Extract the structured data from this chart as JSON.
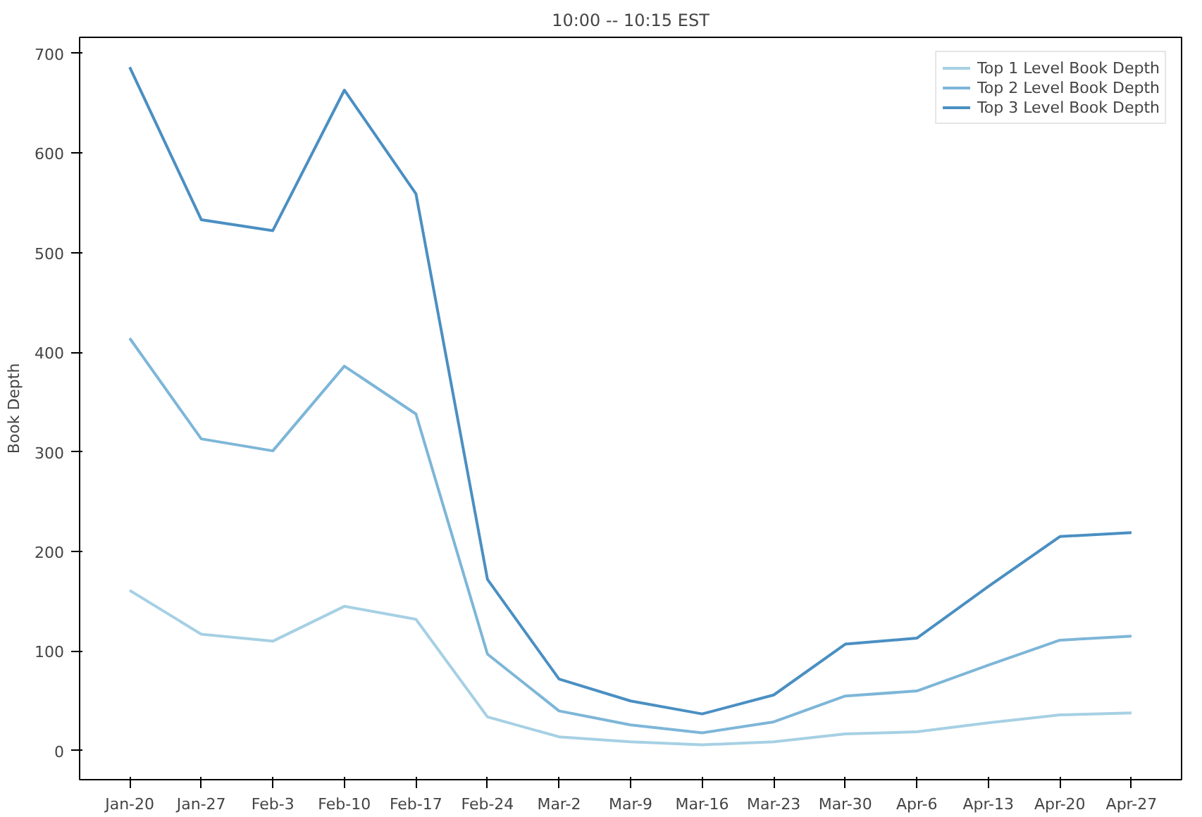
{
  "chart_data": {
    "type": "line",
    "title": "10:00 -- 10:15 EST",
    "ylabel": "Book Depth",
    "categories": [
      "Jan-20",
      "Jan-27",
      "Feb-3",
      "Feb-10",
      "Feb-17",
      "Feb-24",
      "Mar-2",
      "Mar-9",
      "Mar-16",
      "Mar-23",
      "Mar-30",
      "Apr-6",
      "Apr-13",
      "Apr-20",
      "Apr-27"
    ],
    "series": [
      {
        "name": "Top 1 Level Book Depth",
        "color": "#a6d0e4",
        "values": [
          161,
          117,
          110,
          145,
          132,
          34,
          14,
          9,
          6,
          9,
          17,
          19,
          28,
          36,
          38
        ]
      },
      {
        "name": "Top 2 Level Book Depth",
        "color": "#7db6d8",
        "values": [
          414,
          313,
          301,
          386,
          338,
          97,
          40,
          26,
          18,
          29,
          55,
          60,
          86,
          111,
          115
        ]
      },
      {
        "name": "Top 3 Level Book Depth",
        "color": "#4a8fc2",
        "values": [
          686,
          533,
          522,
          663,
          559,
          172,
          72,
          50,
          37,
          56,
          107,
          113,
          165,
          215,
          219
        ]
      }
    ],
    "ylim": [
      -29,
      716
    ],
    "yticks": [
      0,
      100,
      200,
      300,
      400,
      500,
      600,
      700
    ],
    "grid": false,
    "legend": "top right"
  }
}
